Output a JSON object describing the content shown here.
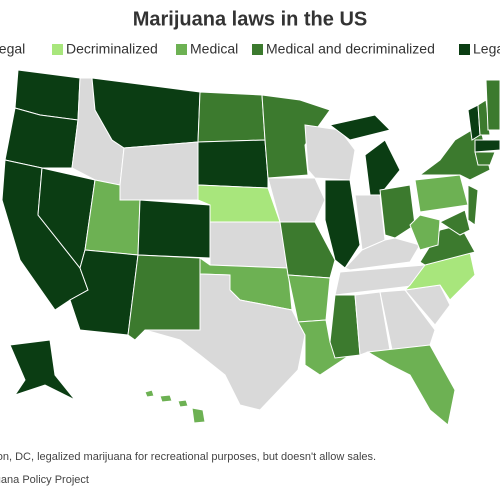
{
  "title": "Marijuana laws in the US",
  "legend": [
    {
      "name": "Fully illegal",
      "color": "#d9d9d9"
    },
    {
      "name": "Decriminalized",
      "color": "#a8e67c"
    },
    {
      "name": "Medical",
      "color": "#6db153"
    },
    {
      "name": "Medical and decriminalized",
      "color": "#3c7a2e"
    },
    {
      "name": "Legal",
      "color": "#0b3d13"
    }
  ],
  "footnote": "*Washington, DC, legalized marijuana for recreational purposes, but doesn't allow sales.",
  "source": "Source: Marijuana Policy Project"
}
